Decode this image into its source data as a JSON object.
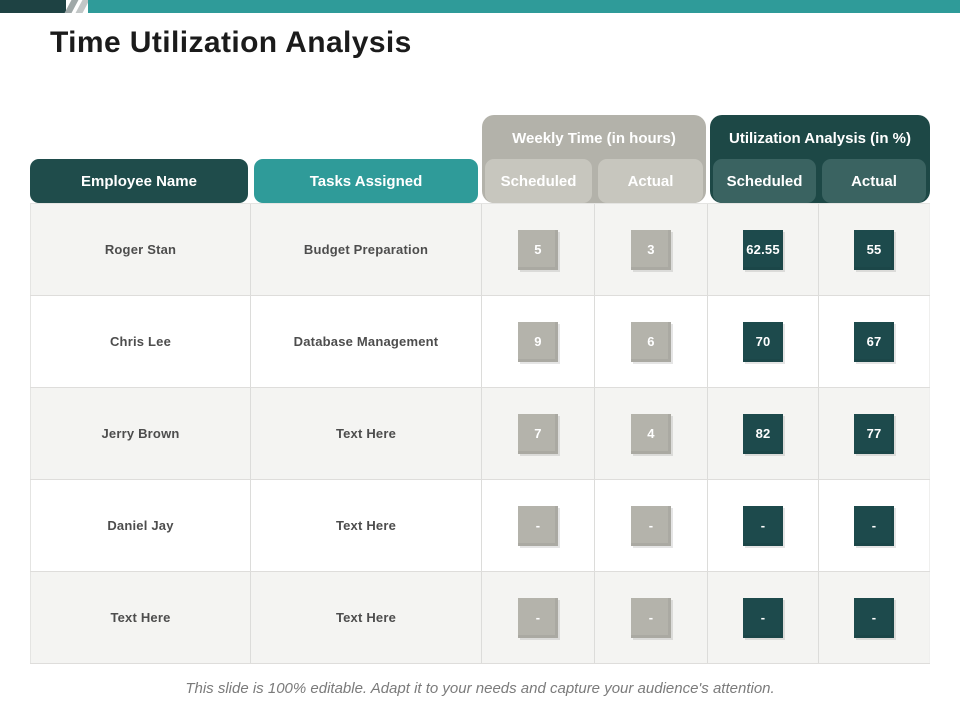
{
  "title": "Time Utilization Analysis",
  "top_bar": {
    "dark_color": "#1e4243",
    "teal_color": "#2f9b99"
  },
  "colors": {
    "dark_teal": "#1f4c4b",
    "teal": "#2f9b99",
    "group_gray": "#b3b2aa",
    "subheader_gray": "#c7c6be",
    "subheader_teal": "#3a6361",
    "value_gray": "#b4b3ab",
    "value_teal": "#1d4a4c",
    "row_alt": "#f4f4f2"
  },
  "table": {
    "group_headers": {
      "weekly_time": "Weekly Time (in hours)",
      "utilization": "Utilization Analysis (in %)"
    },
    "columns": {
      "employee": "Employee Name",
      "tasks": "Tasks Assigned",
      "weekly_scheduled": "Scheduled",
      "weekly_actual": "Actual",
      "util_scheduled": "Scheduled",
      "util_actual": "Actual"
    },
    "rows": [
      {
        "employee": "Roger Stan",
        "task": "Budget Preparation",
        "weekly_scheduled": "5",
        "weekly_actual": "3",
        "util_scheduled": "62.55",
        "util_actual": "55"
      },
      {
        "employee": "Chris Lee",
        "task": "Database Management",
        "weekly_scheduled": "9",
        "weekly_actual": "6",
        "util_scheduled": "70",
        "util_actual": "67"
      },
      {
        "employee": "Jerry Brown",
        "task": "Text Here",
        "weekly_scheduled": "7",
        "weekly_actual": "4",
        "util_scheduled": "82",
        "util_actual": "77"
      },
      {
        "employee": "Daniel Jay",
        "task": "Text Here",
        "weekly_scheduled": "-",
        "weekly_actual": "-",
        "util_scheduled": "-",
        "util_actual": "-"
      },
      {
        "employee": "Text Here",
        "task": "Text Here",
        "weekly_scheduled": "-",
        "weekly_actual": "-",
        "util_scheduled": "-",
        "util_actual": "-"
      }
    ]
  },
  "footer": {
    "note": "This slide is 100% editable.  Adapt it to your needs and capture your audience's attention."
  }
}
